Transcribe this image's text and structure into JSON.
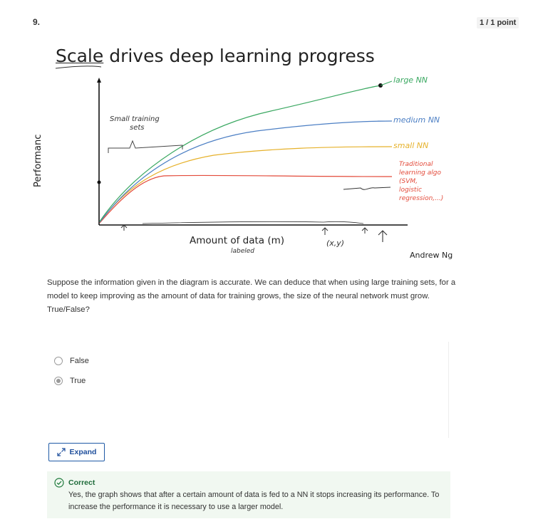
{
  "question": {
    "number": "9.",
    "points": "1 / 1 point",
    "text": "Suppose the information given in the diagram is accurate. We can deduce that when using large training sets, for a model to keep improving as the amount of data for training grows, the size of the neural network must grow. True/False?"
  },
  "figure": {
    "title_underlined": "Scale",
    "title_rest": " drives deep learning progress",
    "ylabel": "Performanc",
    "xlabel": "Amount of data  (m)",
    "xlabel_note": "labeled",
    "xy_note": "(x,y)",
    "credit": "Andrew Ng",
    "annotations": {
      "small_training_sets": [
        "Small training",
        "sets"
      ],
      "large_nn": "large NN",
      "medium_nn": "medium NN",
      "small_nn": "small NN",
      "traditional": [
        "Traditional",
        "learning algo",
        "(SVM,",
        "logistic",
        "regression,...)"
      ]
    },
    "colors": {
      "large": "#3aa861",
      "medium": "#4c7fc4",
      "small": "#e6b12a",
      "traditional": "#e34a3a"
    }
  },
  "options": [
    {
      "label": "False",
      "selected": false
    },
    {
      "label": "True",
      "selected": true
    }
  ],
  "expand_label": "Expand",
  "feedback": {
    "title": "Correct",
    "text": "Yes, the graph shows that after a certain amount of data is fed to a NN it stops increasing its performance. To increase the performance it is necessary to use a larger model."
  }
}
